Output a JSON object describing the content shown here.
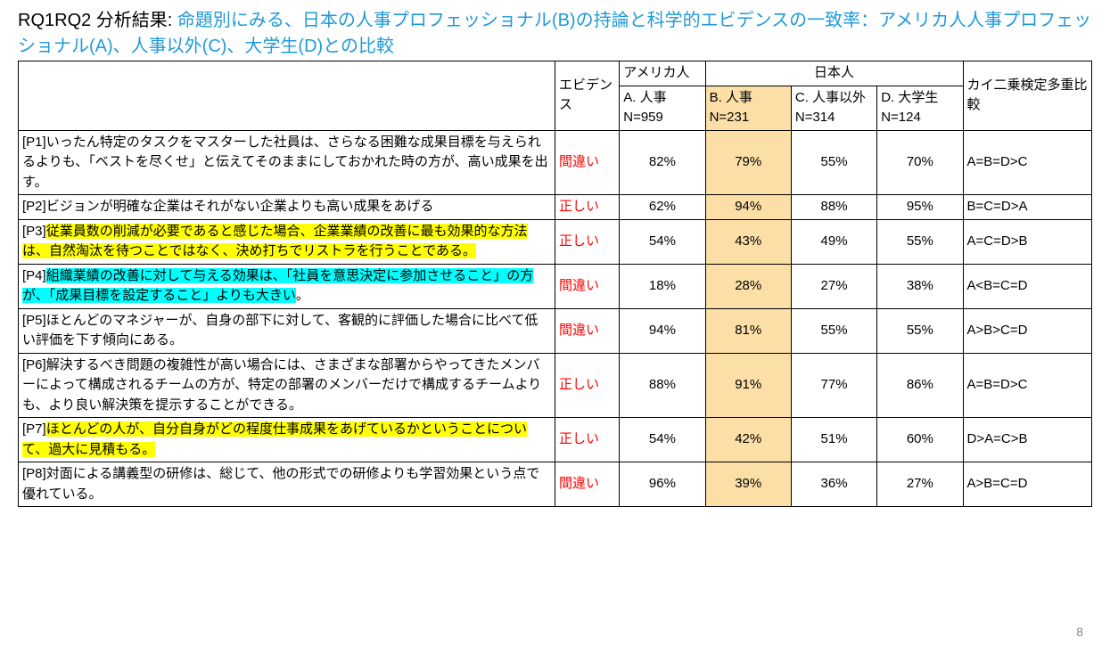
{
  "title": {
    "prefix": "RQ1RQ2 分析結果: ",
    "main": "命題別にみる、日本の人事プロフェッショナル(B)の持論と科学的エビデンスの一致率：アメリカ人人事プロフェッショナル(A)、人事以外(C)、大学生(D)との比較"
  },
  "header": {
    "evidence": "エビデンス",
    "american": "アメリカ人",
    "japanese": "日本人",
    "chi": "カイ二乗検定多重比較",
    "colA": "A. 人事 N=959",
    "colB": "B. 人事 N=231",
    "colC": "C. 人事以外 N=314",
    "colD": "D. 大学生 N=124"
  },
  "rows": [
    {
      "id": "[P1]",
      "text": "いったん特定のタスクをマスターした社員は、さらなる困難な成果目標を与えられるよりも、「ベストを尽くせ」と伝えてそのままにしておかれた時の方が、高い成果を出す。",
      "highlight": "none",
      "evidence": "間違い",
      "a": "82%",
      "b": "79%",
      "c": "55%",
      "d": "70%",
      "chi": "A=B=D>C"
    },
    {
      "id": "[P2]",
      "text": "ビジョンが明確な企業はそれがない企業よりも高い成果をあげる",
      "highlight": "none",
      "evidence": "正しい",
      "a": "62%",
      "b": "94%",
      "c": "88%",
      "d": "95%",
      "chi": "B=C=D>A"
    },
    {
      "id": "[P3]",
      "text": "従業員数の削減が必要であると感じた場合、企業業績の改善に最も効果的な方法は、自然淘汰を待つことではなく、決め打ちでリストラを行うことである。",
      "highlight": "yellow",
      "evidence": "正しい",
      "a": "54%",
      "b": "43%",
      "c": "49%",
      "d": "55%",
      "chi": "A=C=D>B"
    },
    {
      "id": "[P4]",
      "text": "組織業績の改善に対して与える効果は、「社員を意思決定に参加させること」の方が、「成果目標を設定すること」よりも大きい",
      "trailing": "。",
      "highlight": "cyan",
      "evidence": "間違い",
      "a": "18%",
      "b": "28%",
      "c": "27%",
      "d": "38%",
      "chi": "A<B=C=D"
    },
    {
      "id": "[P5]",
      "text": "ほとんどのマネジャーが、自身の部下に対して、客観的に評価した場合に比べて低い評価を下す傾向にある。",
      "highlight": "none",
      "evidence": "間違い",
      "a": "94%",
      "b": "81%",
      "c": "55%",
      "d": "55%",
      "chi": "A>B>C=D"
    },
    {
      "id": "[P6]",
      "text": "解決するべき問題の複雑性が高い場合には、さまざまな部署からやってきたメンバーによって構成されるチームの方が、特定の部署のメンバーだけで構成するチームよりも、より良い解決策を提示することができる。",
      "highlight": "none",
      "evidence": "正しい",
      "a": "88%",
      "b": "91%",
      "c": "77%",
      "d": "86%",
      "chi": "A=B=D>C"
    },
    {
      "id": "[P7]",
      "text": "ほとんどの人が、自分自身がどの程度仕事成果をあげているかということについて、過大に見積もる。",
      "highlight": "yellow",
      "evidence": "正しい",
      "a": "54%",
      "b": "42%",
      "c": "51%",
      "d": "60%",
      "chi": "D>A=C>B"
    },
    {
      "id": "[P8]",
      "text": "対面による講義型の研修は、総じて、他の形式での研修よりも学習効果という点で優れている。",
      "highlight": "none",
      "evidence": "間違い",
      "a": "96%",
      "b": "39%",
      "c": "36%",
      "d": "27%",
      "chi": "A>B=C=D"
    }
  ],
  "page_number": "8",
  "colors": {
    "title_blue": "#1f9ad8",
    "evidence_red": "#ff0000",
    "colB_bg": "#fcdfa7",
    "hl_yellow": "#ffff00",
    "hl_cyan": "#00ffff",
    "border": "#000000",
    "text": "#000000",
    "page_num": "#888888",
    "bg": "#ffffff"
  }
}
